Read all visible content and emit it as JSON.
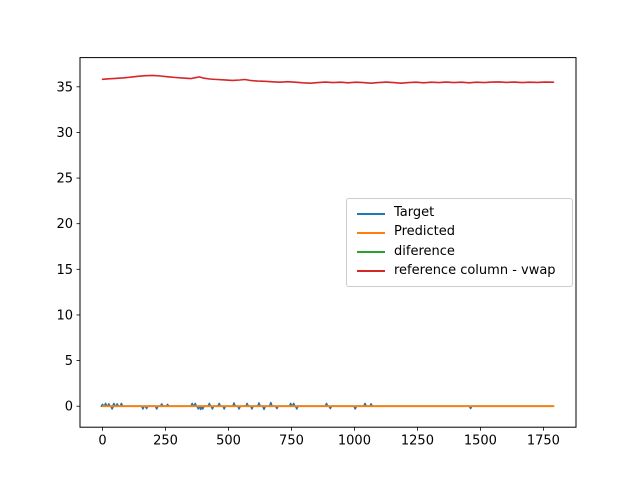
{
  "figure": {
    "background": "#ffffff"
  },
  "chart_data": {
    "type": "line",
    "title": "",
    "xlabel": "",
    "ylabel": "",
    "grid": false,
    "xlim": [
      -89.5,
      1879.5
    ],
    "ylim": [
      -2.3,
      38.2
    ],
    "x_ticks": [
      0,
      250,
      500,
      750,
      1000,
      1250,
      1500,
      1750
    ],
    "y_ticks": [
      0,
      5,
      10,
      15,
      20,
      25,
      30,
      35
    ],
    "spine_color": "#000000",
    "tick_label_color": "#000000",
    "legend": {
      "position": "center right",
      "border_color": "#cccccc",
      "background": "rgba(255,255,255,0.8)",
      "entries": [
        {
          "label": "Target",
          "color": "#1f77b4"
        },
        {
          "label": "Predicted",
          "color": "#ff7f0e"
        },
        {
          "label": "diference",
          "color": "#2ca02c"
        },
        {
          "label": "reference column - vwap",
          "color": "#d62728"
        }
      ]
    },
    "series": [
      {
        "name": "Target",
        "color": "#1f77b4",
        "linewidth": 1.6,
        "baseline": [
          0,
          1790
        ],
        "baseline_value": 0,
        "spikes": [
          [
            0,
            0.2
          ],
          [
            12,
            0.3
          ],
          [
            25,
            0.25
          ],
          [
            38,
            -0.3
          ],
          [
            45,
            0.3
          ],
          [
            58,
            0.25
          ],
          [
            75,
            0.3
          ],
          [
            160,
            -0.3
          ],
          [
            175,
            -0.25
          ],
          [
            215,
            -0.3
          ],
          [
            235,
            0.25
          ],
          [
            258,
            0.2
          ],
          [
            356,
            0.3
          ],
          [
            368,
            0.3
          ],
          [
            380,
            -0.3
          ],
          [
            390,
            -0.35
          ],
          [
            398,
            -0.3
          ],
          [
            424,
            0.3
          ],
          [
            436,
            -0.3
          ],
          [
            463,
            0.3
          ],
          [
            483,
            -0.3
          ],
          [
            522,
            0.35
          ],
          [
            542,
            -0.3
          ],
          [
            574,
            0.3
          ],
          [
            593,
            -0.3
          ],
          [
            621,
            0.35
          ],
          [
            641,
            -0.35
          ],
          [
            668,
            0.4
          ],
          [
            692,
            -0.25
          ],
          [
            747,
            0.3
          ],
          [
            759,
            0.3
          ],
          [
            771,
            -0.3
          ],
          [
            889,
            0.3
          ],
          [
            904,
            -0.25
          ],
          [
            1003,
            -0.3
          ],
          [
            1042,
            0.3
          ],
          [
            1066,
            0.25
          ],
          [
            1461,
            -0.25
          ]
        ]
      },
      {
        "name": "diference",
        "color": "#2ca02c",
        "linewidth": 1.6,
        "points": [
          [
            0,
            0
          ],
          [
            1790,
            0
          ]
        ]
      },
      {
        "name": "Predicted",
        "color": "#ff7f0e",
        "linewidth": 1.8,
        "points": [
          [
            0,
            0
          ],
          [
            1790,
            0
          ]
        ]
      },
      {
        "name": "reference column - vwap",
        "color": "#d62728",
        "linewidth": 1.6,
        "points": [
          [
            0,
            35.82
          ],
          [
            25,
            35.88
          ],
          [
            50,
            35.92
          ],
          [
            80,
            35.98
          ],
          [
            110,
            36.05
          ],
          [
            140,
            36.15
          ],
          [
            170,
            36.22
          ],
          [
            200,
            36.25
          ],
          [
            230,
            36.18
          ],
          [
            260,
            36.1
          ],
          [
            290,
            36.02
          ],
          [
            320,
            35.95
          ],
          [
            350,
            35.9
          ],
          [
            368,
            36.0
          ],
          [
            385,
            36.08
          ],
          [
            400,
            35.95
          ],
          [
            425,
            35.85
          ],
          [
            455,
            35.8
          ],
          [
            485,
            35.76
          ],
          [
            515,
            35.7
          ],
          [
            545,
            35.74
          ],
          [
            565,
            35.8
          ],
          [
            585,
            35.7
          ],
          [
            615,
            35.62
          ],
          [
            645,
            35.6
          ],
          [
            675,
            35.55
          ],
          [
            705,
            35.5
          ],
          [
            735,
            35.56
          ],
          [
            765,
            35.5
          ],
          [
            795,
            35.44
          ],
          [
            825,
            35.4
          ],
          [
            855,
            35.46
          ],
          [
            885,
            35.52
          ],
          [
            915,
            35.46
          ],
          [
            945,
            35.5
          ],
          [
            975,
            35.44
          ],
          [
            1005,
            35.5
          ],
          [
            1035,
            35.46
          ],
          [
            1065,
            35.4
          ],
          [
            1095,
            35.46
          ],
          [
            1125,
            35.52
          ],
          [
            1155,
            35.46
          ],
          [
            1185,
            35.4
          ],
          [
            1215,
            35.46
          ],
          [
            1245,
            35.5
          ],
          [
            1275,
            35.44
          ],
          [
            1305,
            35.5
          ],
          [
            1335,
            35.46
          ],
          [
            1365,
            35.52
          ],
          [
            1395,
            35.46
          ],
          [
            1425,
            35.5
          ],
          [
            1455,
            35.44
          ],
          [
            1485,
            35.5
          ],
          [
            1515,
            35.46
          ],
          [
            1545,
            35.52
          ],
          [
            1575,
            35.54
          ],
          [
            1605,
            35.48
          ],
          [
            1635,
            35.52
          ],
          [
            1665,
            35.46
          ],
          [
            1695,
            35.5
          ],
          [
            1725,
            35.48
          ],
          [
            1755,
            35.52
          ],
          [
            1790,
            35.5
          ]
        ]
      }
    ]
  }
}
